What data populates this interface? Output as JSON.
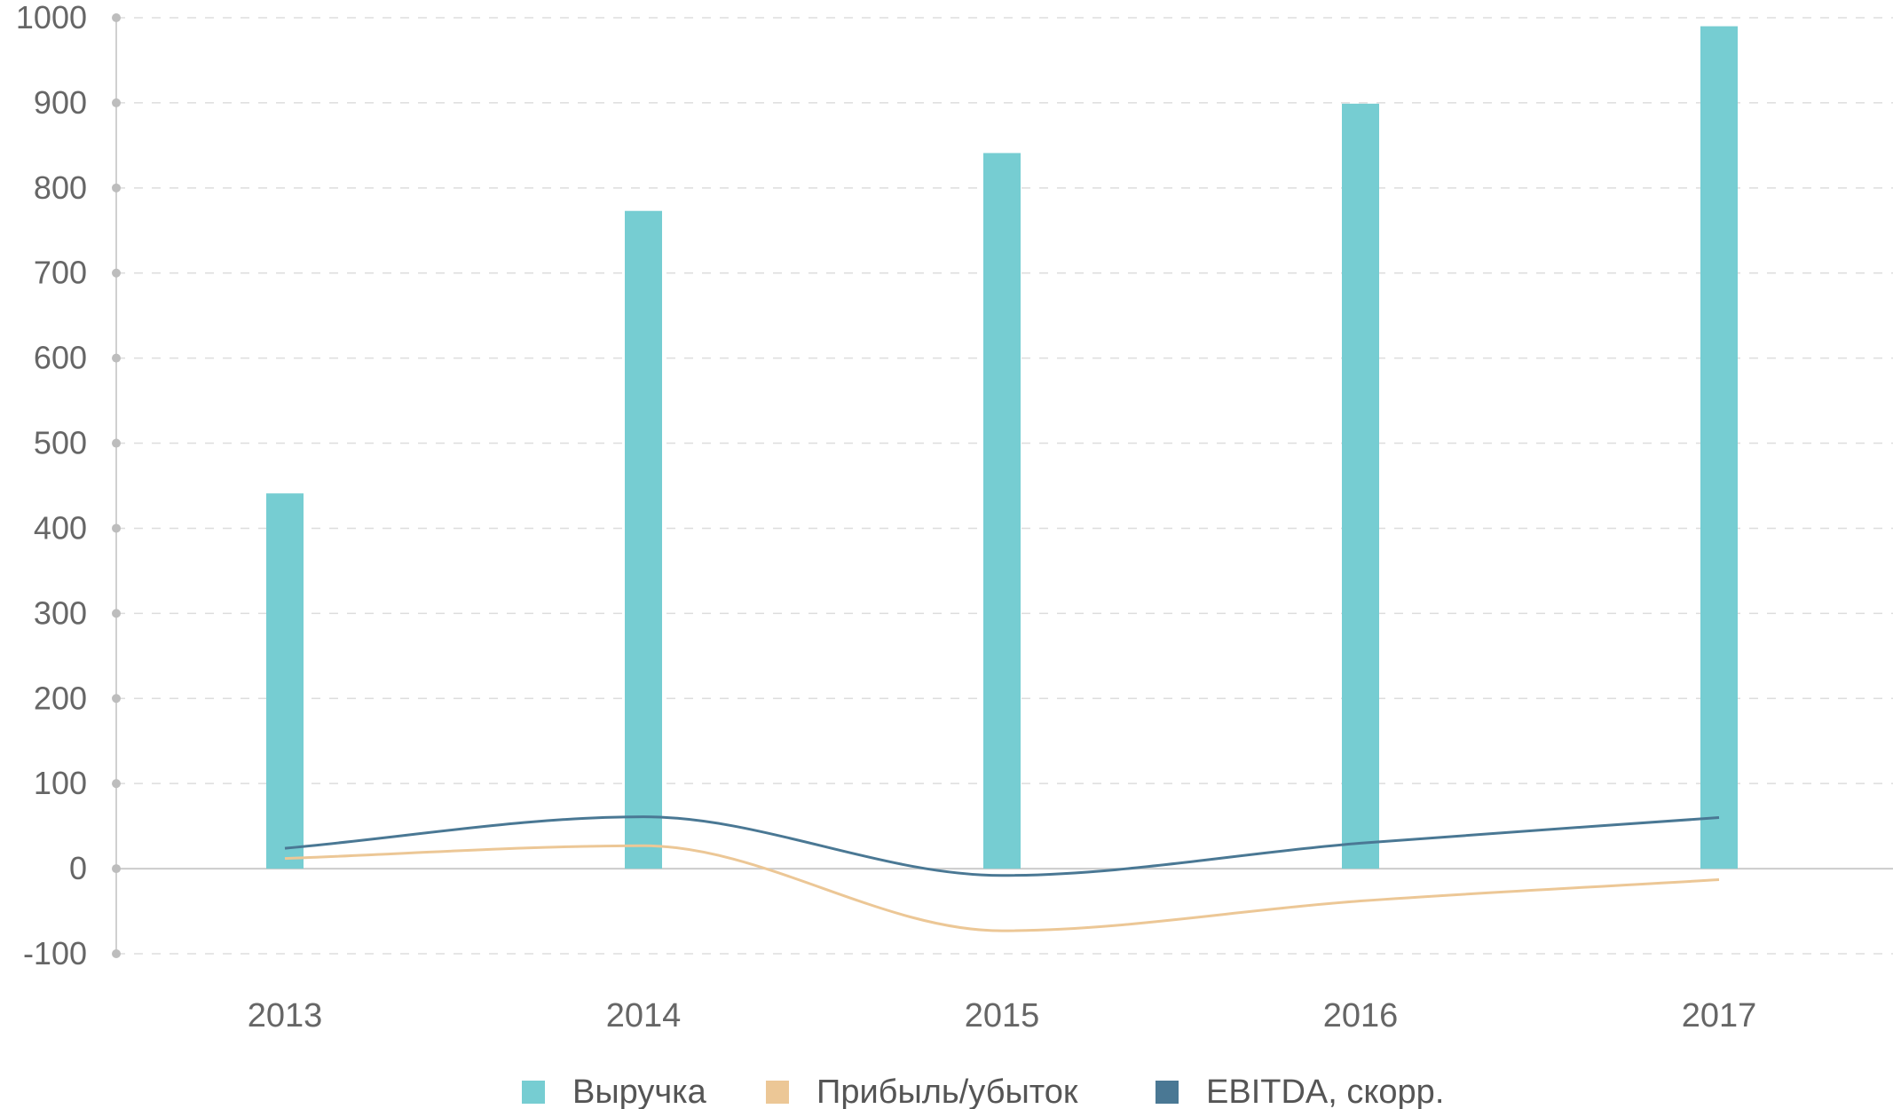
{
  "chart_data": {
    "type": "bar",
    "title": "",
    "xlabel": "",
    "ylabel": "",
    "categories": [
      "2013",
      "2014",
      "2015",
      "2016",
      "2017"
    ],
    "ylim": [
      -100,
      1000
    ],
    "yticks": [
      "1000",
      "900",
      "800",
      "700",
      "600",
      "500",
      "400",
      "300",
      "200",
      "100",
      "0",
      "-100"
    ],
    "grid": true,
    "legend_position": "bottom-center",
    "series": [
      {
        "name": "Выручка",
        "kind": "bar",
        "color": "#76cdd2",
        "values": [
          441,
          773,
          841,
          899,
          990
        ]
      },
      {
        "name": "Прибыль/убыток",
        "kind": "line",
        "color": "#ecc796",
        "values": [
          12,
          27,
          -73,
          -38,
          -13
        ]
      },
      {
        "name": "EBITDA, скорр.",
        "kind": "line",
        "color": "#4a7894",
        "values": [
          24,
          61,
          -8,
          30,
          60
        ]
      }
    ]
  }
}
